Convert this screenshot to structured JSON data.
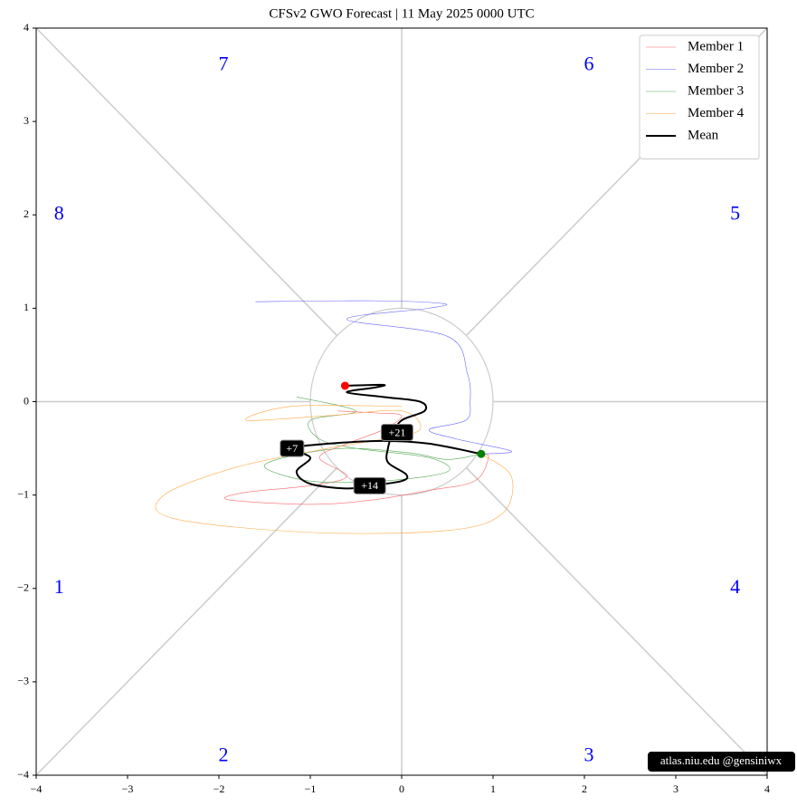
{
  "chart_data": {
    "type": "phase",
    "title": "CFSv2 GWO Forecast   |   11  May  2025 0000 UTC",
    "xlim": [
      -4,
      4
    ],
    "ylim": [
      -4,
      4
    ],
    "xticks": [
      {
        "value": -4,
        "label": "−4"
      },
      {
        "value": -3,
        "label": "−3"
      },
      {
        "value": -2,
        "label": "−2"
      },
      {
        "value": -1,
        "label": "−1"
      },
      0,
      1,
      2,
      3,
      4
    ],
    "yticks": [
      {
        "value": -4,
        "label": "−4"
      },
      {
        "value": -3,
        "label": "−3"
      },
      {
        "value": -2,
        "label": "−2"
      },
      {
        "value": -1,
        "label": "−1"
      },
      0,
      1,
      2,
      3,
      4
    ],
    "legend": "upper right",
    "phase_labels": [
      {
        "label": "1",
        "x": -3.75,
        "y": -2.0
      },
      {
        "label": "2",
        "x": -1.95,
        "y": -3.8
      },
      {
        "label": "3",
        "x": 2.05,
        "y": -3.8
      },
      {
        "label": "4",
        "x": 3.65,
        "y": -2.0
      },
      {
        "label": "5",
        "x": 3.65,
        "y": 2.0
      },
      {
        "label": "6",
        "x": 2.05,
        "y": 3.6
      },
      {
        "label": "7",
        "x": -1.95,
        "y": 3.6
      },
      {
        "label": "8",
        "x": -3.75,
        "y": 2.0
      }
    ],
    "series": [
      {
        "name": "Member 1",
        "color": "#ff6666",
        "width": 0.6,
        "x": [
          0.87,
          0.95,
          0.8,
          0.3,
          -0.3,
          -1.0,
          -1.9,
          -1.7,
          -1.0,
          -0.6,
          -0.9,
          -0.6,
          -0.2,
          0.0,
          -0.3,
          -0.7
        ],
        "y": [
          -0.56,
          -0.6,
          -0.85,
          -0.95,
          -1.05,
          -1.1,
          -1.05,
          -0.97,
          -0.9,
          -0.8,
          -0.6,
          -0.45,
          -0.3,
          -0.15,
          -0.12,
          -0.1
        ]
      },
      {
        "name": "Member 2",
        "color": "#6666ff",
        "width": 0.6,
        "x": [
          0.87,
          1.2,
          0.6,
          0.3,
          0.7,
          0.75,
          0.72,
          0.5,
          -0.6,
          0.3,
          0.45,
          -0.3,
          -1.6
        ],
        "y": [
          -0.56,
          -0.53,
          -0.4,
          -0.3,
          -0.2,
          0.0,
          0.3,
          0.7,
          0.88,
          1.0,
          1.05,
          1.08,
          1.07
        ]
      },
      {
        "name": "Member 3",
        "color": "#55aa55",
        "width": 0.6,
        "x": [
          0.87,
          0.5,
          0.1,
          -0.6,
          -1.2,
          -1.5,
          -1.0,
          -0.2,
          0.5,
          0.3,
          -0.5,
          -0.9,
          -1.0,
          -0.5,
          -1.15
        ],
        "y": [
          -0.56,
          -0.62,
          -0.55,
          -0.5,
          -0.58,
          -0.7,
          -0.85,
          -0.85,
          -0.75,
          -0.6,
          -0.5,
          -0.4,
          -0.2,
          -0.1,
          0.05
        ]
      },
      {
        "name": "Member 4",
        "color": "#ffaa44",
        "width": 0.6,
        "x": [
          0.87,
          1.2,
          1.1,
          0.5,
          -1.0,
          -2.5,
          -2.6,
          -1.8,
          -0.8,
          -0.2,
          0.2,
          0.0,
          -0.8,
          -1.7,
          -1.2,
          0.0
        ],
        "y": [
          -0.56,
          -0.8,
          -1.2,
          -1.38,
          -1.4,
          -1.25,
          -1.0,
          -0.7,
          -0.5,
          -0.4,
          -0.3,
          -0.1,
          -0.15,
          -0.2,
          -0.05,
          -0.05
        ]
      },
      {
        "name": "Mean",
        "color": "#000000",
        "width": 2,
        "x": [
          0.87,
          0.3,
          -0.2,
          -0.8,
          -1.2,
          -1.0,
          -1.15,
          -1.0,
          -0.6,
          -0.35,
          0.0,
          0.05,
          -0.15,
          -0.15,
          -0.1,
          0.0,
          0.25,
          0.2,
          -0.2,
          -0.6,
          -0.3,
          -0.2,
          -0.62
        ],
        "y": [
          -0.56,
          -0.45,
          -0.42,
          -0.45,
          -0.5,
          -0.6,
          -0.75,
          -0.88,
          -0.93,
          -0.9,
          -0.85,
          -0.78,
          -0.65,
          -0.5,
          -0.35,
          -0.2,
          -0.1,
          0.0,
          0.05,
          0.1,
          0.15,
          0.18,
          0.17
        ]
      }
    ],
    "start_point": {
      "x": 0.87,
      "y": -0.56,
      "color": "#008000"
    },
    "end_point": {
      "x": -0.62,
      "y": 0.17,
      "color": "#ff0000"
    },
    "day_labels": [
      {
        "label": "+7",
        "x": -1.2,
        "y": -0.5
      },
      {
        "label": "+14",
        "x": -0.35,
        "y": -0.9
      },
      {
        "label": "+21",
        "x": -0.05,
        "y": -0.33
      }
    ],
    "watermark": "atlas.niu.edu  @gensiniwx"
  }
}
